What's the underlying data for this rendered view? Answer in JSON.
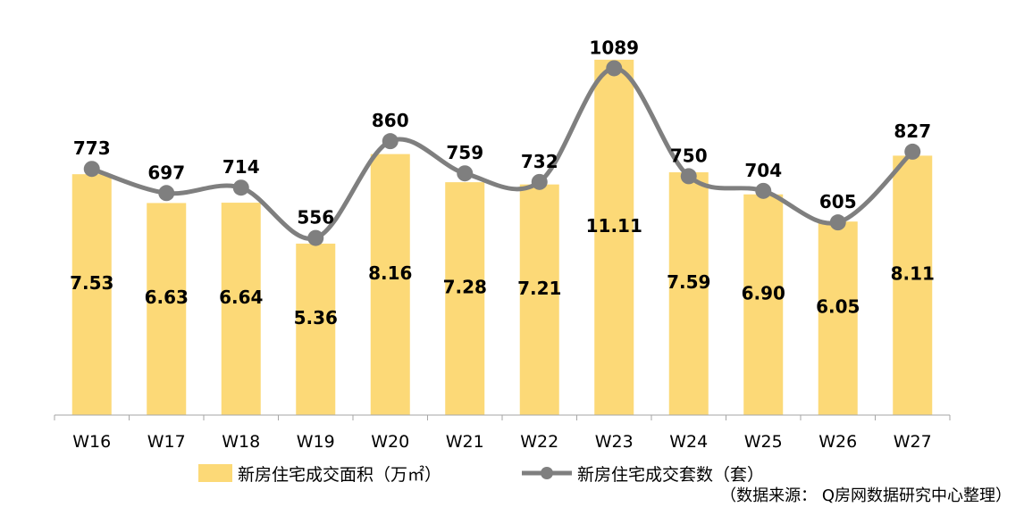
{
  "chart_data": {
    "type": "bar",
    "categories": [
      "W16",
      "W17",
      "W18",
      "W19",
      "W20",
      "W21",
      "W22",
      "W23",
      "W24",
      "W25",
      "W26",
      "W27"
    ],
    "series": [
      {
        "name": "新房住宅成交面积（万㎡）",
        "type": "bar",
        "axis": "left",
        "values": [
          7.53,
          6.63,
          6.64,
          5.36,
          8.16,
          7.28,
          7.21,
          11.11,
          7.59,
          6.9,
          6.05,
          8.11
        ],
        "labels": [
          "7.53",
          "6.63",
          "6.64",
          "5.36",
          "8.16",
          "7.28",
          "7.21",
          "11.11",
          "7.59",
          "6.90",
          "6.05",
          "8.11"
        ]
      },
      {
        "name": "新房住宅成交套数（套）",
        "type": "line",
        "axis": "right",
        "smooth": true,
        "values": [
          773,
          697,
          714,
          556,
          860,
          759,
          732,
          1089,
          750,
          704,
          605,
          827
        ],
        "labels": [
          "773",
          "697",
          "714",
          "556",
          "860",
          "759",
          "732",
          "1089",
          "750",
          "704",
          "605",
          "827"
        ]
      }
    ],
    "ylim_left": [
      0,
      12
    ],
    "ylim_right": [
      0,
      1250
    ],
    "grid": false,
    "legend_position": "bottom",
    "colors": {
      "bar": "#fcd977",
      "line": "#7f7f7f"
    }
  },
  "source_note": "（数据来源： Q房网数据研究中心整理）"
}
